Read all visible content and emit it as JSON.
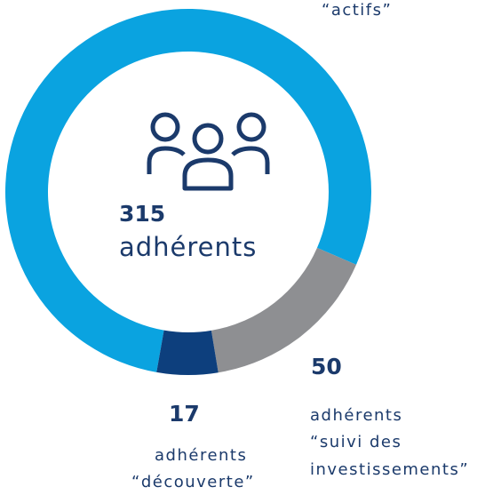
{
  "chart_data": {
    "type": "donut",
    "center": {
      "value": 315,
      "label": "adhérents"
    },
    "segments": [
      {
        "value": 248,
        "color": "#0aa3e0",
        "label_lines": [
          "“actifs”"
        ]
      },
      {
        "value": 50,
        "color": "#8e8f92",
        "unit": "adhérents",
        "label_lines": [
          "“suivi des",
          "investissements”"
        ]
      },
      {
        "value": 17,
        "color": "#0d3f7d",
        "unit": "adhérents",
        "label_lines": [
          "“découverte”"
        ]
      }
    ]
  }
}
